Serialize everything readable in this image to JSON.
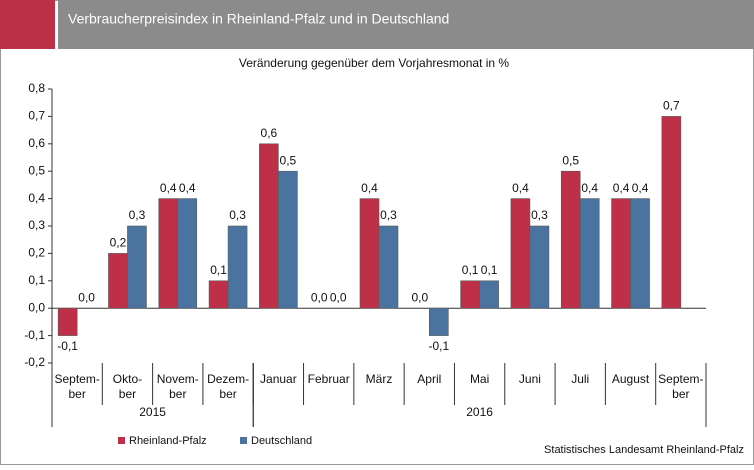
{
  "chart_data": {
    "type": "bar",
    "title": "Verbraucherpreisindex  in Rheinland-Pfalz und in Deutschland",
    "subtitle": "Veränderung gegenüber dem Vorjahresmonat in %",
    "source": "Statistisches Landesamt Rheinland-Pfalz",
    "categories": [
      [
        "Septem-",
        "ber"
      ],
      [
        "Okto-",
        "ber"
      ],
      [
        "Novem-",
        "ber"
      ],
      [
        "Dezem-",
        "ber"
      ],
      [
        "Januar"
      ],
      [
        "Februar"
      ],
      [
        "März"
      ],
      [
        "April"
      ],
      [
        "Mai"
      ],
      [
        "Juni"
      ],
      [
        "Juli"
      ],
      [
        "August"
      ],
      [
        "Septem-",
        "ber"
      ]
    ],
    "year_groups": [
      {
        "label": "2015",
        "count": 4
      },
      {
        "label": "2016",
        "count": 9
      }
    ],
    "series": [
      {
        "name": "Rheinland-Pfalz",
        "color": "#be2f48",
        "values": [
          -0.1,
          0.2,
          0.4,
          0.1,
          0.6,
          0.0,
          0.4,
          0.0,
          0.1,
          0.4,
          0.5,
          0.4,
          0.7
        ],
        "value_labels": [
          "-0,1",
          "0,2",
          "0,4",
          "0,1",
          "0,6",
          "0,0",
          "0,4",
          "0,0",
          "0,1",
          "0,4",
          "0,5",
          "0,4",
          "0,7"
        ]
      },
      {
        "name": "Deutschland",
        "color": "#4a73a0",
        "values": [
          0.0,
          0.3,
          0.4,
          0.3,
          0.5,
          0.0,
          0.3,
          -0.1,
          0.1,
          0.3,
          0.4,
          0.4,
          null
        ],
        "value_labels": [
          "0,0",
          "0,3",
          "0,4",
          "0,3",
          "0,5",
          "0,0",
          "0,3",
          "-0,1",
          "0,1",
          "0,3",
          "0,4",
          "0,4",
          null
        ]
      }
    ],
    "ylim": [
      -0.2,
      0.8
    ],
    "yticks": [
      {
        "value": -0.2,
        "label": "-0,2"
      },
      {
        "value": -0.1,
        "label": "-0,1"
      },
      {
        "value": 0,
        "label": "0,0"
      },
      {
        "value": 0.1,
        "label": "0,1"
      },
      {
        "value": 0.2,
        "label": "0,2"
      },
      {
        "value": 0.3,
        "label": "0,3"
      },
      {
        "value": 0.4,
        "label": "0,4"
      },
      {
        "value": 0.5,
        "label": "0,5"
      },
      {
        "value": 0.6,
        "label": "0,6"
      },
      {
        "value": 0.7,
        "label": "0,7"
      },
      {
        "value": 0.8,
        "label": "0,8"
      }
    ],
    "grid": false
  }
}
